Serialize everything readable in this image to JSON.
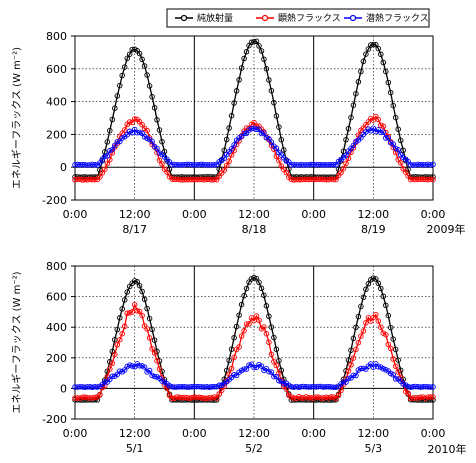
{
  "legend": {
    "items": [
      {
        "name": "純放射量",
        "color": "#000000"
      },
      {
        "name": "顕熱フラックス",
        "color": "#ff0000"
      },
      {
        "name": "潜熱フラックス",
        "color": "#0000ff"
      }
    ]
  },
  "chart_data": [
    {
      "type": "line",
      "ylabel": "エネルギーフラックス (W m⁻²)",
      "ylim": [
        -200,
        800
      ],
      "yticks": [
        "800",
        "600",
        "400",
        "200",
        "0",
        "-200"
      ],
      "xticks": [
        "0:00",
        "12:00",
        "0:00",
        "12:00",
        "0:00",
        "12:00",
        "0:00"
      ],
      "dates": [
        "8/17",
        "8/18",
        "8/19"
      ],
      "year": "2009年",
      "days": 3,
      "grid": true,
      "series": [
        {
          "name": "純放射量",
          "color": "#000000",
          "night": -60,
          "peaks": [
            720,
            770,
            750
          ],
          "width": 4.2,
          "noise": 8
        },
        {
          "name": "顕熱フラックス",
          "color": "#ff0000",
          "night": -75,
          "peaks": [
            290,
            260,
            300
          ],
          "width": 4.0,
          "noise": 20
        },
        {
          "name": "潜熱フラックス",
          "color": "#0000ff",
          "night": 15,
          "peaks": [
            220,
            230,
            230
          ],
          "width": 4.5,
          "noise": 18
        }
      ]
    },
    {
      "type": "line",
      "ylabel": "エネルギーフラックス (W m⁻²)",
      "ylim": [
        -200,
        800
      ],
      "yticks": [
        "800",
        "600",
        "400",
        "200",
        "0",
        "-200"
      ],
      "xticks": [
        "0:00",
        "12:00",
        "0:00",
        "12:00",
        "0:00",
        "12:00",
        "0:00"
      ],
      "dates": [
        "5/1",
        "5/2",
        "5/3"
      ],
      "year": "2010年",
      "days": 3,
      "grid": true,
      "series": [
        {
          "name": "純放射量",
          "color": "#000000",
          "night": -75,
          "peaks": [
            700,
            725,
            720
          ],
          "width": 3.8,
          "noise": 8
        },
        {
          "name": "顕熱フラックス",
          "color": "#ff0000",
          "night": -60,
          "peaks": [
            520,
            460,
            470
          ],
          "width": 3.6,
          "noise": 40
        },
        {
          "name": "潜熱フラックス",
          "color": "#0000ff",
          "night": 10,
          "peaks": [
            150,
            150,
            150
          ],
          "width": 4.0,
          "noise": 22
        }
      ]
    }
  ]
}
